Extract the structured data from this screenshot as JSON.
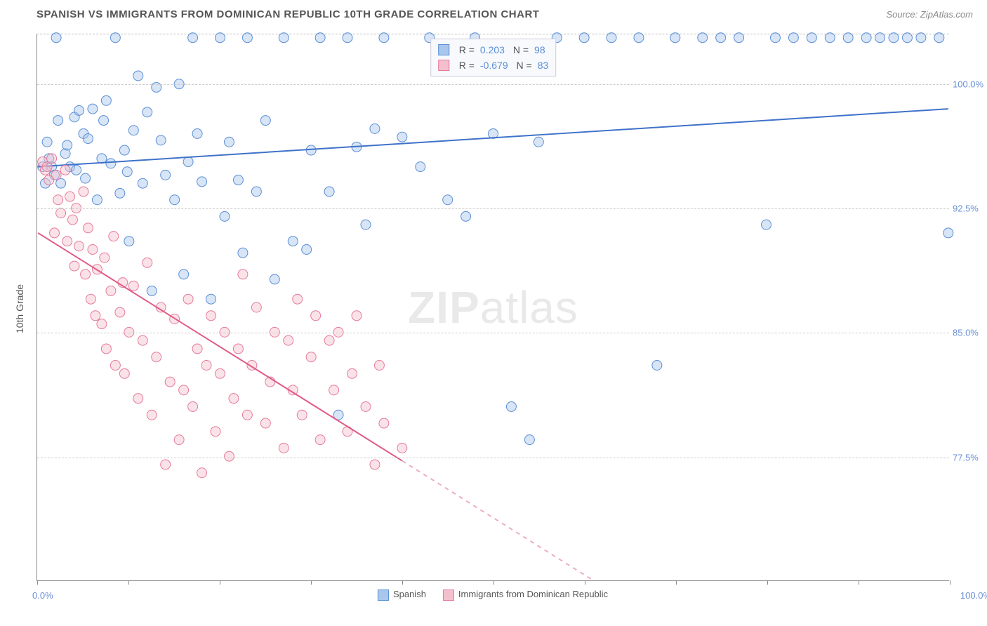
{
  "header": {
    "title": "SPANISH VS IMMIGRANTS FROM DOMINICAN REPUBLIC 10TH GRADE CORRELATION CHART",
    "source": "Source: ZipAtlas.com"
  },
  "chart": {
    "type": "scatter",
    "ylabel": "10th Grade",
    "watermark": "ZIPatlas",
    "background_color": "#ffffff",
    "grid_color": "#cccccc",
    "axis_color": "#888888",
    "tick_label_color": "#6b8fd4",
    "xlim": [
      0,
      100
    ],
    "ylim": [
      70,
      103
    ],
    "x_tick_positions": [
      0,
      10,
      20,
      30,
      40,
      50,
      60,
      70,
      80,
      90,
      100
    ],
    "x_labels": {
      "min": "0.0%",
      "max": "100.0%"
    },
    "y_ticks": [
      {
        "v": 100.0,
        "label": "100.0%"
      },
      {
        "v": 92.5,
        "label": "92.5%"
      },
      {
        "v": 85.0,
        "label": "85.0%"
      },
      {
        "v": 77.5,
        "label": "77.5%"
      }
    ],
    "marker_radius": 7,
    "marker_opacity": 0.45,
    "line_width": 2,
    "series": [
      {
        "id": "spanish",
        "label": "Spanish",
        "color_fill": "#a9c6ec",
        "color_stroke": "#5b8fd6",
        "line_color": "#3f72c9",
        "stats": {
          "R": "0.203",
          "N": "98"
        },
        "trend": {
          "x1": 0,
          "y1": 95.0,
          "x2": 100,
          "y2": 98.5,
          "dash_from_x": null
        },
        "points": [
          [
            0.5,
            95.0
          ],
          [
            0.8,
            94.0
          ],
          [
            1.0,
            96.5
          ],
          [
            1.2,
            95.5
          ],
          [
            1.5,
            95.0
          ],
          [
            1.8,
            94.5
          ],
          [
            2.0,
            102.8
          ],
          [
            2.2,
            97.8
          ],
          [
            2.5,
            94.0
          ],
          [
            3.0,
            95.8
          ],
          [
            3.2,
            96.3
          ],
          [
            3.5,
            95.0
          ],
          [
            4.0,
            98.0
          ],
          [
            4.2,
            94.8
          ],
          [
            4.5,
            98.4
          ],
          [
            5.0,
            97.0
          ],
          [
            5.2,
            94.3
          ],
          [
            5.5,
            96.7
          ],
          [
            6.0,
            98.5
          ],
          [
            6.5,
            93.0
          ],
          [
            7.0,
            95.5
          ],
          [
            7.2,
            97.8
          ],
          [
            7.5,
            99.0
          ],
          [
            8.0,
            95.2
          ],
          [
            8.5,
            102.8
          ],
          [
            9.0,
            93.4
          ],
          [
            9.5,
            96.0
          ],
          [
            9.8,
            94.7
          ],
          [
            10.0,
            90.5
          ],
          [
            10.5,
            97.2
          ],
          [
            11.0,
            100.5
          ],
          [
            11.5,
            94.0
          ],
          [
            12.0,
            98.3
          ],
          [
            12.5,
            87.5
          ],
          [
            13.0,
            99.8
          ],
          [
            13.5,
            96.6
          ],
          [
            14.0,
            94.5
          ],
          [
            15.0,
            93.0
          ],
          [
            15.5,
            100.0
          ],
          [
            16.0,
            88.5
          ],
          [
            16.5,
            95.3
          ],
          [
            17.0,
            102.8
          ],
          [
            17.5,
            97.0
          ],
          [
            18.0,
            94.1
          ],
          [
            19.0,
            87.0
          ],
          [
            20.0,
            102.8
          ],
          [
            20.5,
            92.0
          ],
          [
            21.0,
            96.5
          ],
          [
            22.0,
            94.2
          ],
          [
            22.5,
            89.8
          ],
          [
            23.0,
            102.8
          ],
          [
            24.0,
            93.5
          ],
          [
            25.0,
            97.8
          ],
          [
            26.0,
            88.2
          ],
          [
            27.0,
            102.8
          ],
          [
            28.0,
            90.5
          ],
          [
            29.5,
            90.0
          ],
          [
            30.0,
            96.0
          ],
          [
            31.0,
            102.8
          ],
          [
            32.0,
            93.5
          ],
          [
            33.0,
            80.0
          ],
          [
            34.0,
            102.8
          ],
          [
            35.0,
            96.2
          ],
          [
            36.0,
            91.5
          ],
          [
            37.0,
            97.3
          ],
          [
            38.0,
            102.8
          ],
          [
            40.0,
            96.8
          ],
          [
            42.0,
            95.0
          ],
          [
            43.0,
            102.8
          ],
          [
            45.0,
            93.0
          ],
          [
            47.0,
            92.0
          ],
          [
            48.0,
            102.8
          ],
          [
            50.0,
            97.0
          ],
          [
            52.0,
            80.5
          ],
          [
            54.0,
            78.5
          ],
          [
            55.0,
            96.5
          ],
          [
            57.0,
            102.8
          ],
          [
            60.0,
            102.8
          ],
          [
            63.0,
            102.8
          ],
          [
            66.0,
            102.8
          ],
          [
            68.0,
            83.0
          ],
          [
            70.0,
            102.8
          ],
          [
            73.0,
            102.8
          ],
          [
            75.0,
            102.8
          ],
          [
            77.0,
            102.8
          ],
          [
            80.0,
            91.5
          ],
          [
            81.0,
            102.8
          ],
          [
            83.0,
            102.8
          ],
          [
            85.0,
            102.8
          ],
          [
            87.0,
            102.8
          ],
          [
            89.0,
            102.8
          ],
          [
            91.0,
            102.8
          ],
          [
            92.5,
            102.8
          ],
          [
            94.0,
            102.8
          ],
          [
            95.5,
            102.8
          ],
          [
            97.0,
            102.8
          ],
          [
            99.0,
            102.8
          ],
          [
            100.0,
            91.0
          ]
        ]
      },
      {
        "id": "dominican",
        "label": "Immigrants from Dominican Republic",
        "color_fill": "#f4c0cd",
        "color_stroke": "#e67a9b",
        "line_color": "#e05a85",
        "stats": {
          "R": "-0.679",
          "N": "83"
        },
        "trend": {
          "x1": 0,
          "y1": 91.0,
          "x2": 61,
          "y2": 70.0,
          "dash_from_x": 40
        },
        "points": [
          [
            0.5,
            95.3
          ],
          [
            0.8,
            94.8
          ],
          [
            1.0,
            95.0
          ],
          [
            1.2,
            94.2
          ],
          [
            1.5,
            95.5
          ],
          [
            1.8,
            91.0
          ],
          [
            2.0,
            94.5
          ],
          [
            2.2,
            93.0
          ],
          [
            2.5,
            92.2
          ],
          [
            3.0,
            94.8
          ],
          [
            3.2,
            90.5
          ],
          [
            3.5,
            93.2
          ],
          [
            3.8,
            91.8
          ],
          [
            4.0,
            89.0
          ],
          [
            4.2,
            92.5
          ],
          [
            4.5,
            90.2
          ],
          [
            5.0,
            93.5
          ],
          [
            5.2,
            88.5
          ],
          [
            5.5,
            91.3
          ],
          [
            5.8,
            87.0
          ],
          [
            6.0,
            90.0
          ],
          [
            6.3,
            86.0
          ],
          [
            6.5,
            88.8
          ],
          [
            7.0,
            85.5
          ],
          [
            7.3,
            89.5
          ],
          [
            7.5,
            84.0
          ],
          [
            8.0,
            87.5
          ],
          [
            8.3,
            90.8
          ],
          [
            8.5,
            83.0
          ],
          [
            9.0,
            86.2
          ],
          [
            9.3,
            88.0
          ],
          [
            9.5,
            82.5
          ],
          [
            10.0,
            85.0
          ],
          [
            10.5,
            87.8
          ],
          [
            11.0,
            81.0
          ],
          [
            11.5,
            84.5
          ],
          [
            12.0,
            89.2
          ],
          [
            12.5,
            80.0
          ],
          [
            13.0,
            83.5
          ],
          [
            13.5,
            86.5
          ],
          [
            14.0,
            77.0
          ],
          [
            14.5,
            82.0
          ],
          [
            15.0,
            85.8
          ],
          [
            15.5,
            78.5
          ],
          [
            16.0,
            81.5
          ],
          [
            16.5,
            87.0
          ],
          [
            17.0,
            80.5
          ],
          [
            17.5,
            84.0
          ],
          [
            18.0,
            76.5
          ],
          [
            18.5,
            83.0
          ],
          [
            19.0,
            86.0
          ],
          [
            19.5,
            79.0
          ],
          [
            20.0,
            82.5
          ],
          [
            20.5,
            85.0
          ],
          [
            21.0,
            77.5
          ],
          [
            21.5,
            81.0
          ],
          [
            22.0,
            84.0
          ],
          [
            22.5,
            88.5
          ],
          [
            23.0,
            80.0
          ],
          [
            23.5,
            83.0
          ],
          [
            24.0,
            86.5
          ],
          [
            25.0,
            79.5
          ],
          [
            25.5,
            82.0
          ],
          [
            26.0,
            85.0
          ],
          [
            27.0,
            78.0
          ],
          [
            27.5,
            84.5
          ],
          [
            28.0,
            81.5
          ],
          [
            28.5,
            87.0
          ],
          [
            29.0,
            80.0
          ],
          [
            30.0,
            83.5
          ],
          [
            30.5,
            86.0
          ],
          [
            31.0,
            78.5
          ],
          [
            32.0,
            84.5
          ],
          [
            32.5,
            81.5
          ],
          [
            33.0,
            85.0
          ],
          [
            34.0,
            79.0
          ],
          [
            34.5,
            82.5
          ],
          [
            35.0,
            86.0
          ],
          [
            36.0,
            80.5
          ],
          [
            37.0,
            77.0
          ],
          [
            37.5,
            83.0
          ],
          [
            38.0,
            79.5
          ],
          [
            40.0,
            78.0
          ]
        ]
      }
    ],
    "legend_bottom": [
      {
        "label": "Spanish",
        "fill": "#a9c6ec",
        "stroke": "#5b8fd6"
      },
      {
        "label": "Immigrants from Dominican Republic",
        "fill": "#f4c0cd",
        "stroke": "#e67a9b"
      }
    ]
  }
}
